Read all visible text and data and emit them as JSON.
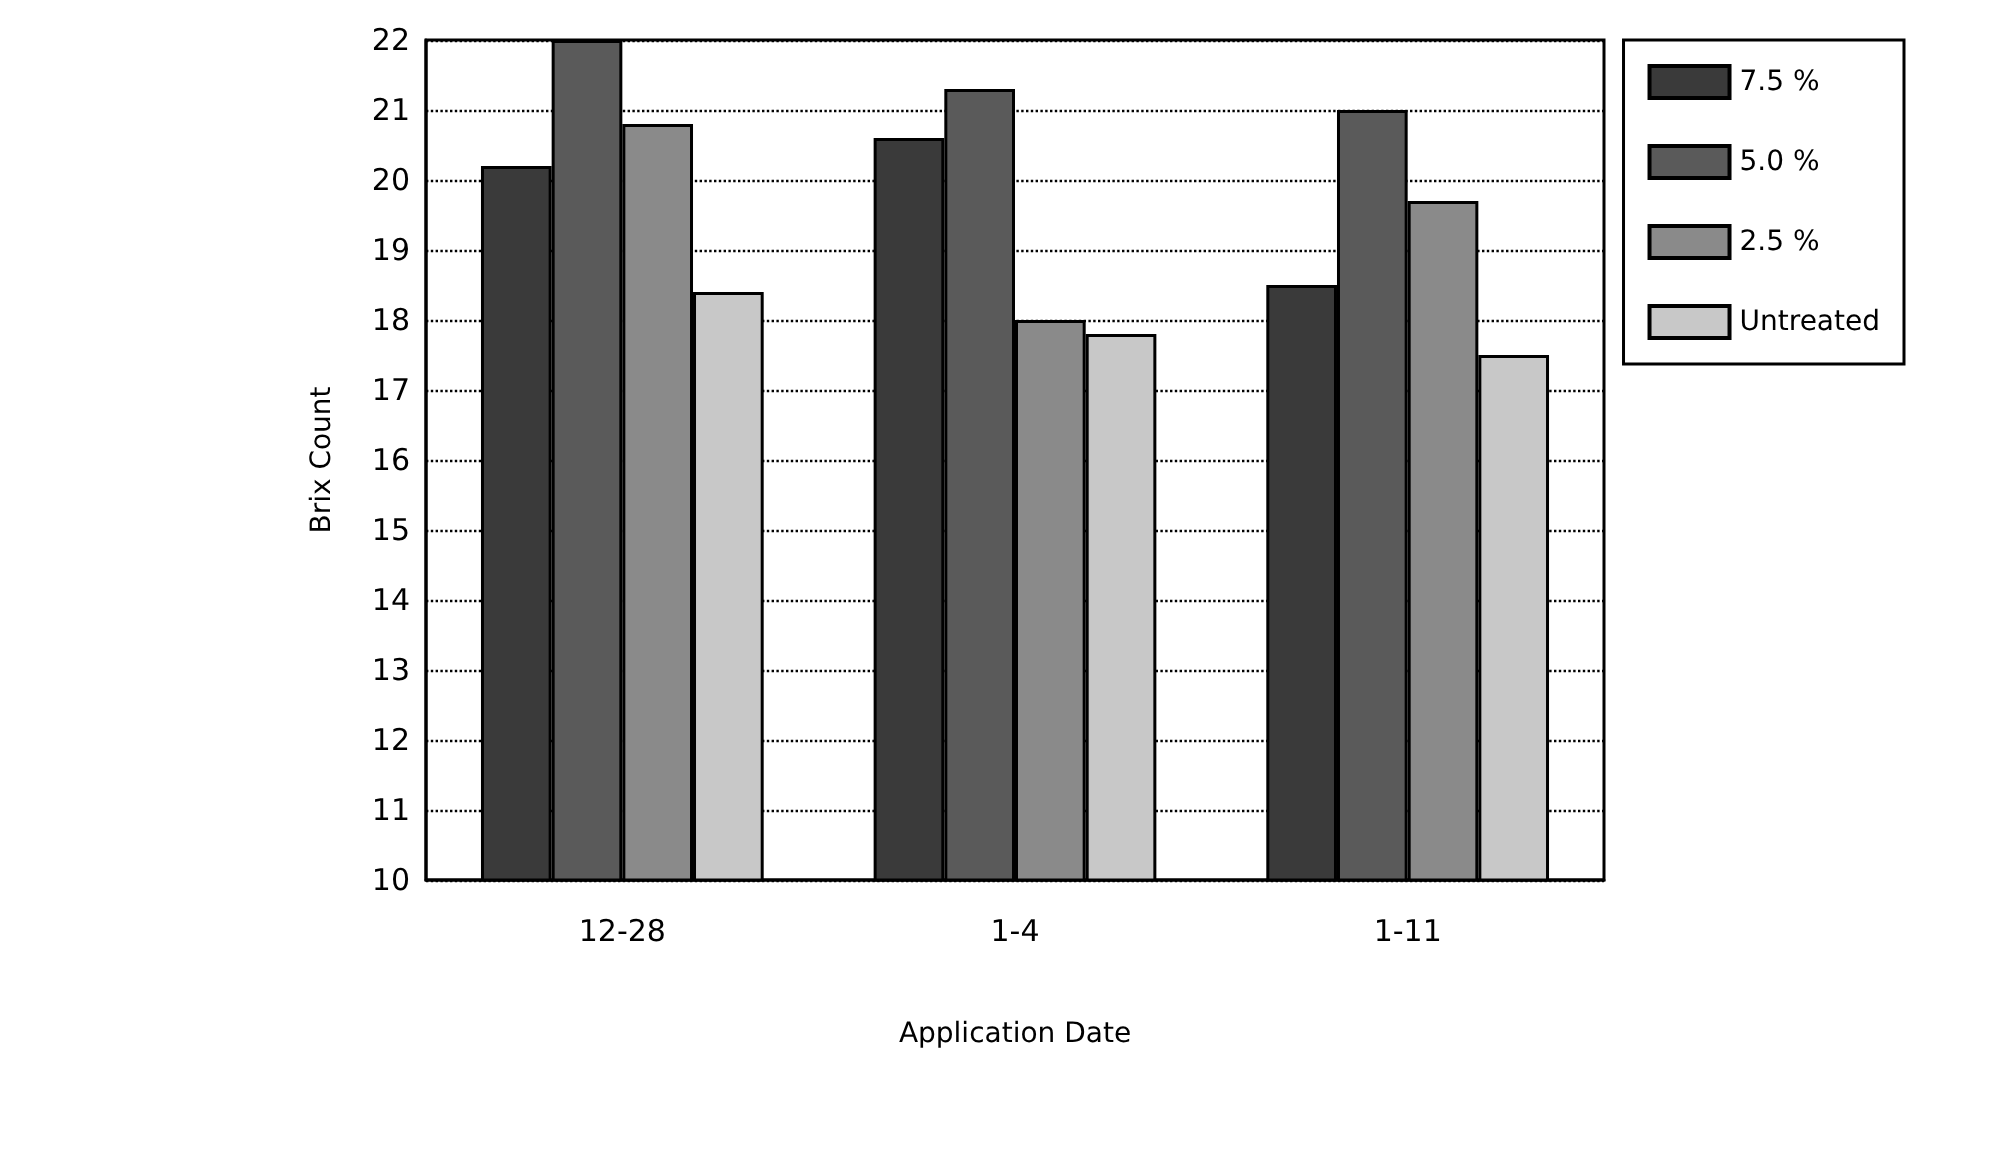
{
  "chart_data": {
    "type": "bar",
    "xlabel": "Application Date",
    "ylabel": "Brix Count",
    "categories": [
      "12-28",
      "1-4",
      "1-11"
    ],
    "series": [
      {
        "name": "7.5 %",
        "color": "#3a3a3a",
        "values": [
          20.2,
          20.6,
          18.5
        ]
      },
      {
        "name": "5.0 %",
        "color": "#5a5a5a",
        "values": [
          22.0,
          21.3,
          21.0
        ]
      },
      {
        "name": "2.5 %",
        "color": "#8a8a8a",
        "values": [
          20.8,
          18.0,
          19.7
        ]
      },
      {
        "name": "Untreated",
        "color": "#c8c8c8",
        "values": [
          18.4,
          17.8,
          17.5
        ]
      }
    ],
    "ylim": [
      10,
      22
    ],
    "yticks": [
      10,
      11,
      12,
      13,
      14,
      15,
      16,
      17,
      18,
      19,
      20,
      21,
      22
    ],
    "grid": "y",
    "legend": "right"
  }
}
